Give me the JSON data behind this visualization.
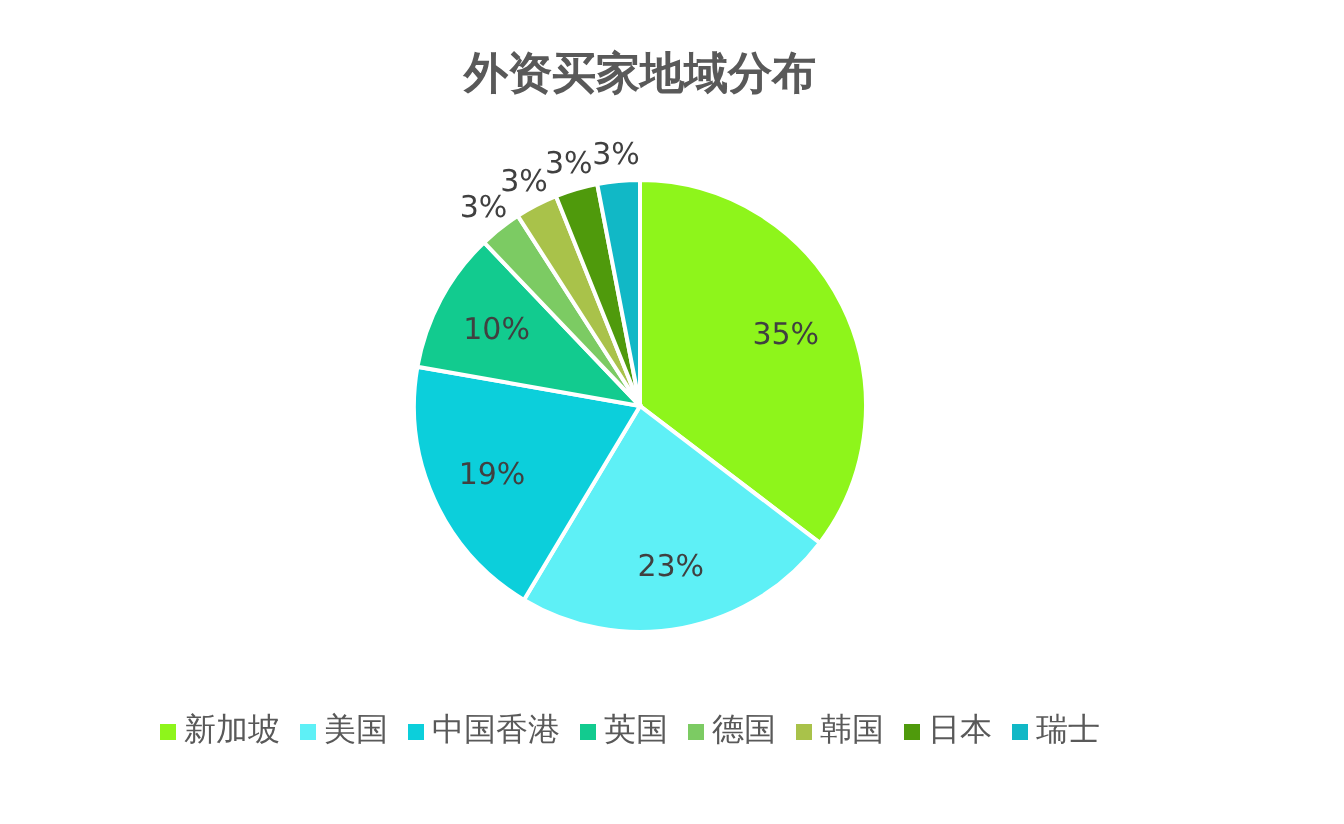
{
  "chart_data": {
    "type": "pie",
    "title": "外资买家地域分布",
    "categories": [
      "新加坡",
      "美国",
      "中国香港",
      "英国",
      "德国",
      "韩国",
      "日本",
      "瑞士"
    ],
    "values": [
      35,
      23,
      19,
      10,
      3,
      3,
      3,
      3
    ],
    "colors": [
      "#8ef51b",
      "#5ef0f6",
      "#0ccfdb",
      "#12cb8f",
      "#7ccb63",
      "#a9c24a",
      "#4f9a0c",
      "#11b8c6"
    ],
    "value_labels": [
      "35%",
      "23%",
      "19%",
      "10%",
      "3%",
      "3%",
      "3%",
      "3%"
    ],
    "legend": "bottom"
  }
}
